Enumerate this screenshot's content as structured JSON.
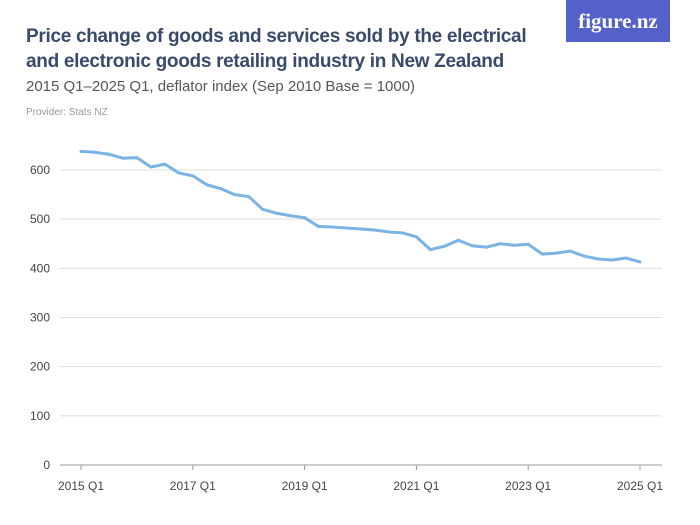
{
  "header": {
    "title": "Price change of goods and services sold by the electrical and electronic goods retailing industry in New Zealand",
    "subtitle": "2015 Q1–2025 Q1, deflator index (Sep 2010 Base = 1000)",
    "provider": "Provider: Stats NZ",
    "logo": "figure.nz"
  },
  "chart_data": {
    "type": "line",
    "title": "Price change of goods and services sold by the electrical and electronic goods retailing industry in New Zealand",
    "ylim": [
      0,
      650
    ],
    "yticks": [
      0,
      100,
      200,
      300,
      400,
      500,
      600
    ],
    "xtick_labels": [
      "2015 Q1",
      "2017 Q1",
      "2019 Q1",
      "2021 Q1",
      "2023 Q1",
      "2025 Q1"
    ],
    "grid": true,
    "line_color": "#7ab3e4",
    "x": [
      "2015 Q1",
      "2015 Q2",
      "2015 Q3",
      "2015 Q4",
      "2016 Q1",
      "2016 Q2",
      "2016 Q3",
      "2016 Q4",
      "2017 Q1",
      "2017 Q2",
      "2017 Q3",
      "2017 Q4",
      "2018 Q1",
      "2018 Q2",
      "2018 Q3",
      "2018 Q4",
      "2019 Q1",
      "2019 Q2",
      "2019 Q3",
      "2019 Q4",
      "2020 Q1",
      "2020 Q2",
      "2020 Q3",
      "2020 Q4",
      "2021 Q1",
      "2021 Q2",
      "2021 Q3",
      "2021 Q4",
      "2022 Q1",
      "2022 Q2",
      "2022 Q3",
      "2022 Q4",
      "2023 Q1",
      "2023 Q2",
      "2023 Q3",
      "2023 Q4",
      "2024 Q1",
      "2024 Q2",
      "2024 Q3",
      "2024 Q4",
      "2025 Q1"
    ],
    "values": [
      638,
      636,
      632,
      624,
      625,
      606,
      612,
      594,
      588,
      570,
      562,
      550,
      546,
      520,
      512,
      507,
      503,
      485,
      484,
      482,
      480,
      478,
      474,
      472,
      464,
      438,
      445,
      457,
      446,
      443,
      450,
      447,
      449,
      429,
      431,
      435,
      425,
      419,
      417,
      421,
      413
    ]
  }
}
